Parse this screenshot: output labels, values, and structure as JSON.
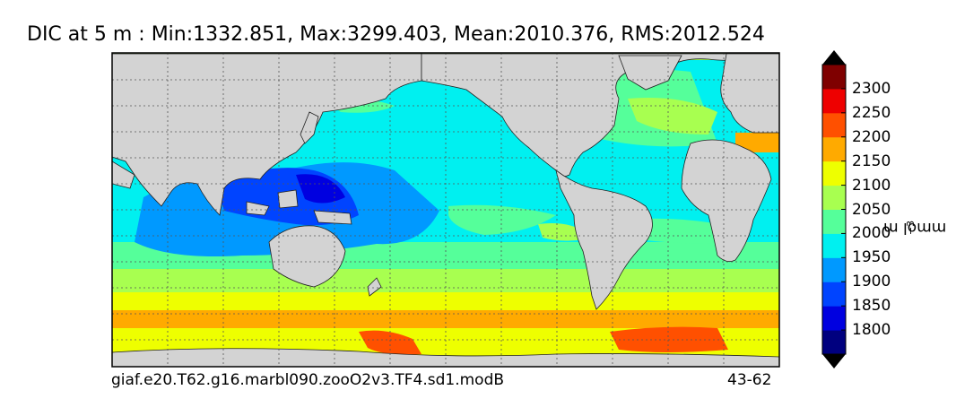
{
  "title": "DIC at 5 m : Min:1332.851, Max:3299.403, Mean:2010.376, RMS:2012.524",
  "footer": {
    "case_name": "giaf.e20.T62.g16.marbl090.zooO2v3.TF4.sd1.modB",
    "years": "43-62"
  },
  "colorbar": {
    "unit_main": "mmol m",
    "unit_exp": "−3",
    "ticks": [
      "1800",
      "1850",
      "1900",
      "1950",
      "2000",
      "2050",
      "2100",
      "2150",
      "2200",
      "2250",
      "2300"
    ],
    "colors": [
      "#00007f",
      "#0000e0",
      "#0044ff",
      "#0099ff",
      "#00f0f0",
      "#55ff9a",
      "#a8ff50",
      "#eeff00",
      "#ffaa00",
      "#ff5000",
      "#ee0000",
      "#7f0000"
    ],
    "extend": "both"
  },
  "map": {
    "projection": "cylindrical",
    "land_color": "#d3d3d3",
    "grid": "dotted"
  }
}
